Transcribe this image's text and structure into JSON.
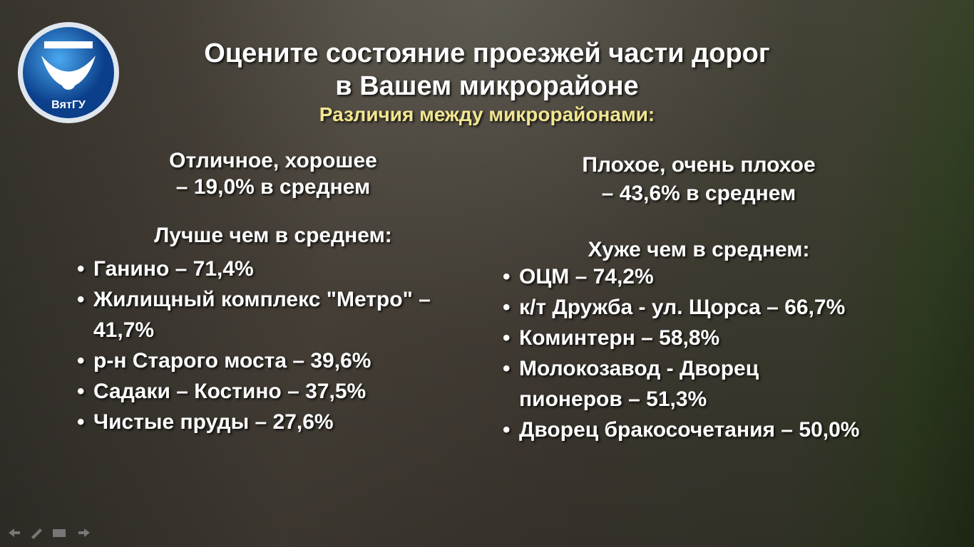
{
  "logo": {
    "text": "ВятГУ"
  },
  "header": {
    "title": [
      "Оцените состояние проезжей части дорог",
      "в Вашем микрорайоне"
    ],
    "subtitle": "Различия между микрорайонами:"
  },
  "left": {
    "summary": [
      "Отличное, хорошее",
      "– 19,0% в среднем"
    ],
    "heading": "Лучше чем в среднем:",
    "items": [
      "Ганино – 71,4%",
      "Жилищный комплекс \"Метро\" – 41,7%",
      "р-н Старого моста – 39,6%",
      "Садаки – Костино – 37,5%",
      "Чистые пруды – 27,6%"
    ]
  },
  "right": {
    "summary": [
      "Плохое, очень плохое",
      "– 43,6% в среднем"
    ],
    "heading": "Хуже чем в среднем:",
    "items": [
      "ОЦМ – 74,2%",
      "к/т Дружба - ул. Щорса – 66,7%",
      "Коминтерн – 58,8%",
      "Молокозавод - Дворец пионеров – 51,3%",
      "Дворец бракосочетания – 50,0%"
    ]
  }
}
